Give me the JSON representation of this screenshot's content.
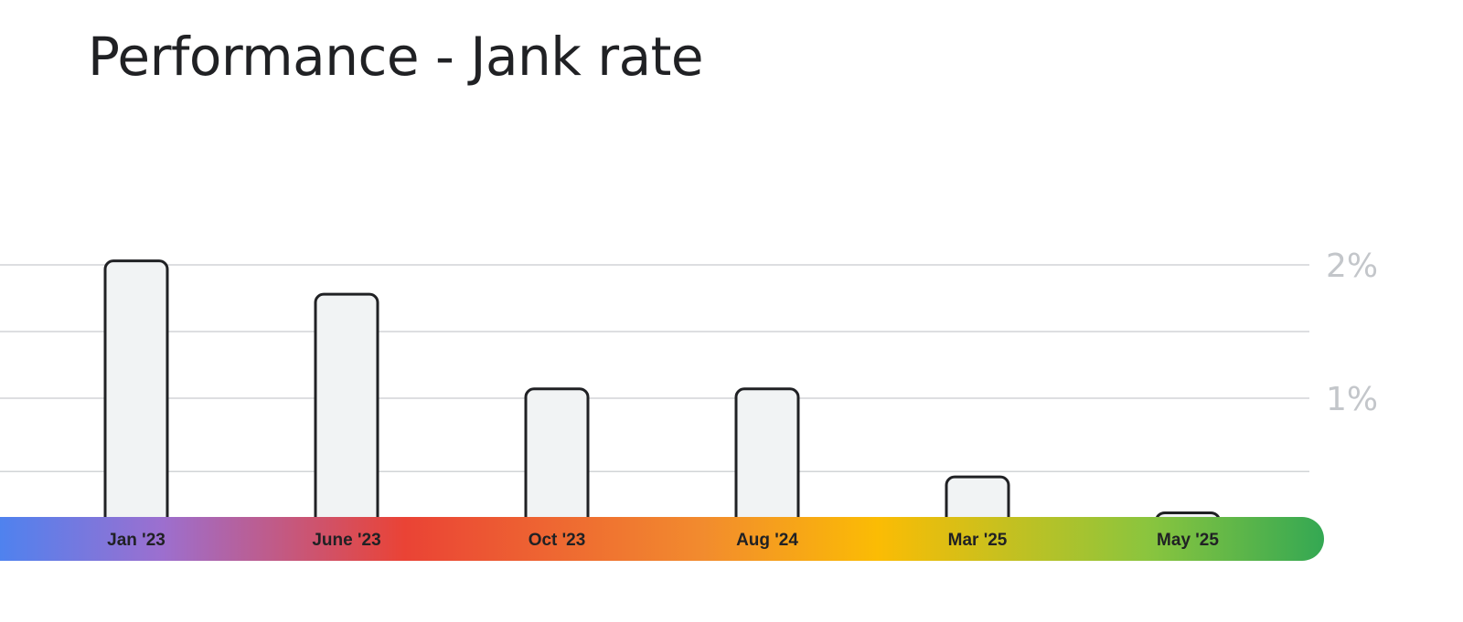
{
  "chart_data": {
    "type": "bar",
    "title": "Performance - Jank rate",
    "categories": [
      "Jan '23",
      "June '23",
      "Oct '23",
      "Aug '24",
      "Mar '25",
      "May '25"
    ],
    "values": [
      2.03,
      1.78,
      1.07,
      1.07,
      0.41,
      0.14
    ],
    "ylim": [
      0,
      2
    ],
    "y_ticks": [
      {
        "value": 2,
        "label": "2%"
      },
      {
        "value": 1,
        "label": "1%"
      }
    ],
    "gridlines": [
      0.45,
      1,
      1.5,
      2
    ],
    "grid": true,
    "x_axis_band_colors": [
      "#4285f4",
      "#9c6fcf",
      "#ea4335",
      "#f28b2e",
      "#fbbc04",
      "#8ac53e",
      "#34a853"
    ]
  }
}
